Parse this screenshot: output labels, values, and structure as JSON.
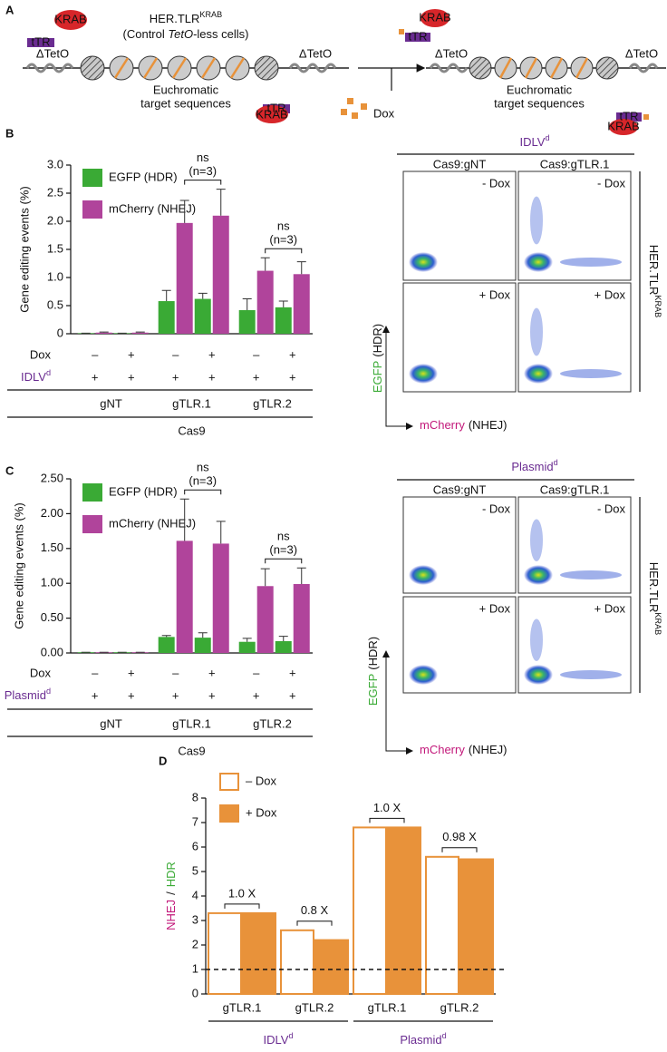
{
  "diagram": {
    "label": "A",
    "cell_line": {
      "text": "HER.TLR",
      "sup": "KRAB"
    },
    "cell_note": {
      "text": "(Control ",
      "italic": "TetO",
      "suffix": "-less cells)"
    },
    "site": "ΔTetO",
    "target": [
      "Euchromatic",
      "target sequences"
    ],
    "repressor": "tTR",
    "effector": "KRAB",
    "drug": "Dox"
  },
  "chart_data": [
    {
      "type": "bar",
      "label": "B",
      "ylabel": "Gene editing events (%)",
      "ylim": [
        0,
        3.0
      ],
      "yticks": [
        0,
        0.5,
        {
          "value": 1,
          "label": "1.0"
        },
        1.5,
        {
          "value": 2,
          "label": "2.0"
        },
        2.5,
        {
          "value": 3,
          "label": "3.0"
        }
      ],
      "series": [
        {
          "name": "EGFP (HDR)",
          "color": "#3aaa35",
          "values": [
            0.01,
            0.01,
            0.58,
            0.62,
            0.42,
            0.47
          ],
          "errors": [
            0,
            0,
            0.19,
            0.1,
            0.2,
            0.11
          ]
        },
        {
          "name": "mCherry (NHEJ)",
          "color": "#b0449b",
          "values": [
            0.02,
            0.02,
            1.97,
            2.1,
            1.12,
            1.06
          ],
          "errors": [
            0.01,
            0.01,
            0.4,
            0.47,
            0.23,
            0.22
          ]
        }
      ],
      "conditions": [
        {
          "label": "Dox",
          "color": "#e8923a",
          "values": [
            "–",
            "+",
            "–",
            "+",
            "–",
            "+"
          ]
        },
        {
          "label": {
            "text": "IDLV",
            "sup": "d"
          },
          "color": "#6a2c91",
          "values": [
            "+",
            "+",
            "+",
            "+",
            "+",
            "+"
          ]
        }
      ],
      "groups": [
        "gNT",
        "gTLR.1",
        "gTLR.2"
      ],
      "group_label": "Cas9",
      "significance": [
        null,
        {
          "text": "ns",
          "note": "(n=3)"
        },
        {
          "text": "ns",
          "note": "(n=3)"
        }
      ]
    },
    {
      "type": "bar",
      "label": "C",
      "ylabel": "Gene editing events (%)",
      "ylim": [
        0,
        2.5
      ],
      "yticks": [
        {
          "value": 0,
          "label": "0.00"
        },
        {
          "value": 0.5,
          "label": "0.50"
        },
        {
          "value": 1,
          "label": "1.00"
        },
        {
          "value": 1.5,
          "label": "1.50"
        },
        {
          "value": 2,
          "label": "2.00"
        },
        {
          "value": 2.5,
          "label": "2.50"
        }
      ],
      "series": [
        {
          "name": "EGFP (HDR)",
          "color": "#3aaa35",
          "values": [
            0.01,
            0.01,
            0.23,
            0.22,
            0.16,
            0.17
          ],
          "errors": [
            0,
            0,
            0.02,
            0.07,
            0.05,
            0.07
          ]
        },
        {
          "name": "mCherry (NHEJ)",
          "color": "#b0449b",
          "values": [
            0.01,
            0.01,
            1.61,
            1.57,
            0.96,
            0.99
          ],
          "errors": [
            0,
            0,
            0.6,
            0.32,
            0.25,
            0.23
          ]
        }
      ],
      "conditions": [
        {
          "label": "Dox",
          "color": "#e8923a",
          "values": [
            "–",
            "+",
            "–",
            "+",
            "–",
            "+"
          ]
        },
        {
          "label": {
            "text": "Plasmid",
            "sup": "d"
          },
          "color": "#6a2c91",
          "values": [
            "+",
            "+",
            "+",
            "+",
            "+",
            "+"
          ]
        }
      ],
      "groups": [
        "gNT",
        "gTLR.1",
        "gTLR.2"
      ],
      "group_label": "Cas9",
      "significance": [
        null,
        {
          "text": "ns",
          "note": "(n=3)"
        },
        {
          "text": "ns",
          "note": "(n=3)"
        }
      ]
    },
    {
      "type": "bar",
      "label": "D",
      "ylabel_parts": [
        "NHEJ",
        "/",
        "HDR"
      ],
      "ylabel_colors": [
        "#c2187a",
        "#111111",
        "#3aaa35"
      ],
      "ylim": [
        0,
        8
      ],
      "yticks": [
        0,
        1,
        2,
        3,
        4,
        5,
        6,
        7,
        8
      ],
      "categories": [
        "gTLR.1",
        "gTLR.2",
        "gTLR.1",
        "gTLR.2"
      ],
      "series": [
        {
          "name": "– Dox",
          "color": "#e8923a",
          "filled": false,
          "values": [
            3.3,
            2.6,
            6.8,
            5.6
          ]
        },
        {
          "name": "+ Dox",
          "color": "#e8923a",
          "filled": true,
          "values": [
            3.3,
            2.2,
            6.8,
            5.5
          ]
        }
      ],
      "ratio_labels": [
        "1.0 X",
        "0.8 X",
        "1.0 X",
        "0.98 X"
      ],
      "groups": [
        {
          "text": "IDLV",
          "sup": "d"
        },
        {
          "text": "Plasmid",
          "sup": "d"
        }
      ],
      "group_color": "#6a2c91",
      "reference_line": 1
    }
  ],
  "flow": [
    {
      "title": {
        "text": "IDLV",
        "sup": "d"
      },
      "columns": [
        "Cas9:gNT",
        "Cas9:gTLR.1"
      ],
      "rows": [
        "- Dox",
        "+ Dox"
      ],
      "side": {
        "text": "HER.TLR",
        "sup": "KRAB"
      },
      "y_label": {
        "text": "EGFP",
        "suffix": "(HDR)"
      },
      "x_label": {
        "text": "mCherry",
        "suffix": "(NHEJ)"
      }
    },
    {
      "title": {
        "text": "Plasmid",
        "sup": "d"
      },
      "columns": [
        "Cas9:gNT",
        "Cas9:gTLR.1"
      ],
      "rows": [
        "- Dox",
        "+ Dox"
      ],
      "side": {
        "text": "HER.TLR",
        "sup": "KRAB"
      },
      "y_label": {
        "text": "EGFP",
        "suffix": "(HDR)"
      },
      "x_label": {
        "text": "mCherry",
        "suffix": "(NHEJ)"
      }
    }
  ]
}
